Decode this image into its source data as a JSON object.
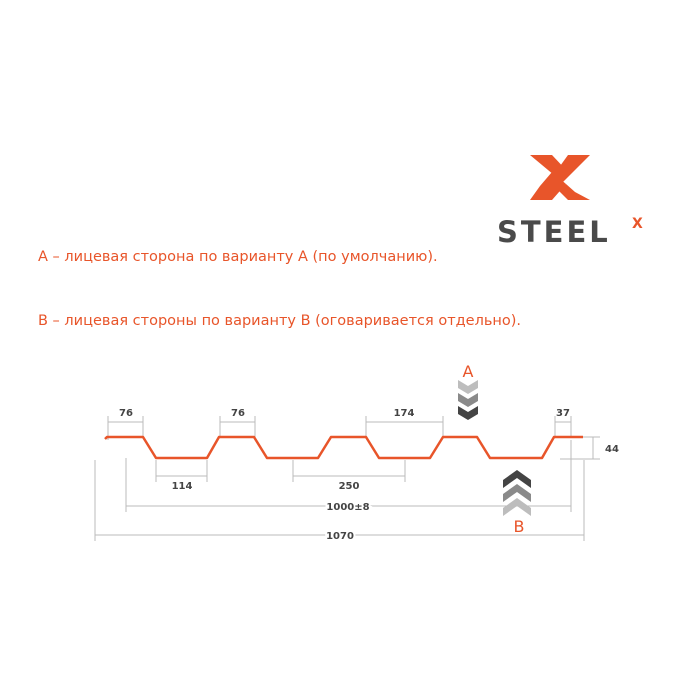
{
  "logo": {
    "text": "STEEL",
    "superscript": "X",
    "brand_color": "#e8552a",
    "text_color": "#4a4a4a"
  },
  "notes": [
    "А – лицевая сторона по варианту А (по умолчанию).",
    "В – лицевая стороны по варианту В (оговаривается отдельно)."
  ],
  "diagram": {
    "profile_color": "#e8552a",
    "dimensions": {
      "top_left": "76",
      "top_mid": "76",
      "top_span": "174",
      "top_right": "37",
      "bottom_width": "114",
      "pitch": "250",
      "working_width": "1000±8",
      "total_width": "1070",
      "height": "44"
    },
    "side_a": "A",
    "side_b": "B"
  }
}
